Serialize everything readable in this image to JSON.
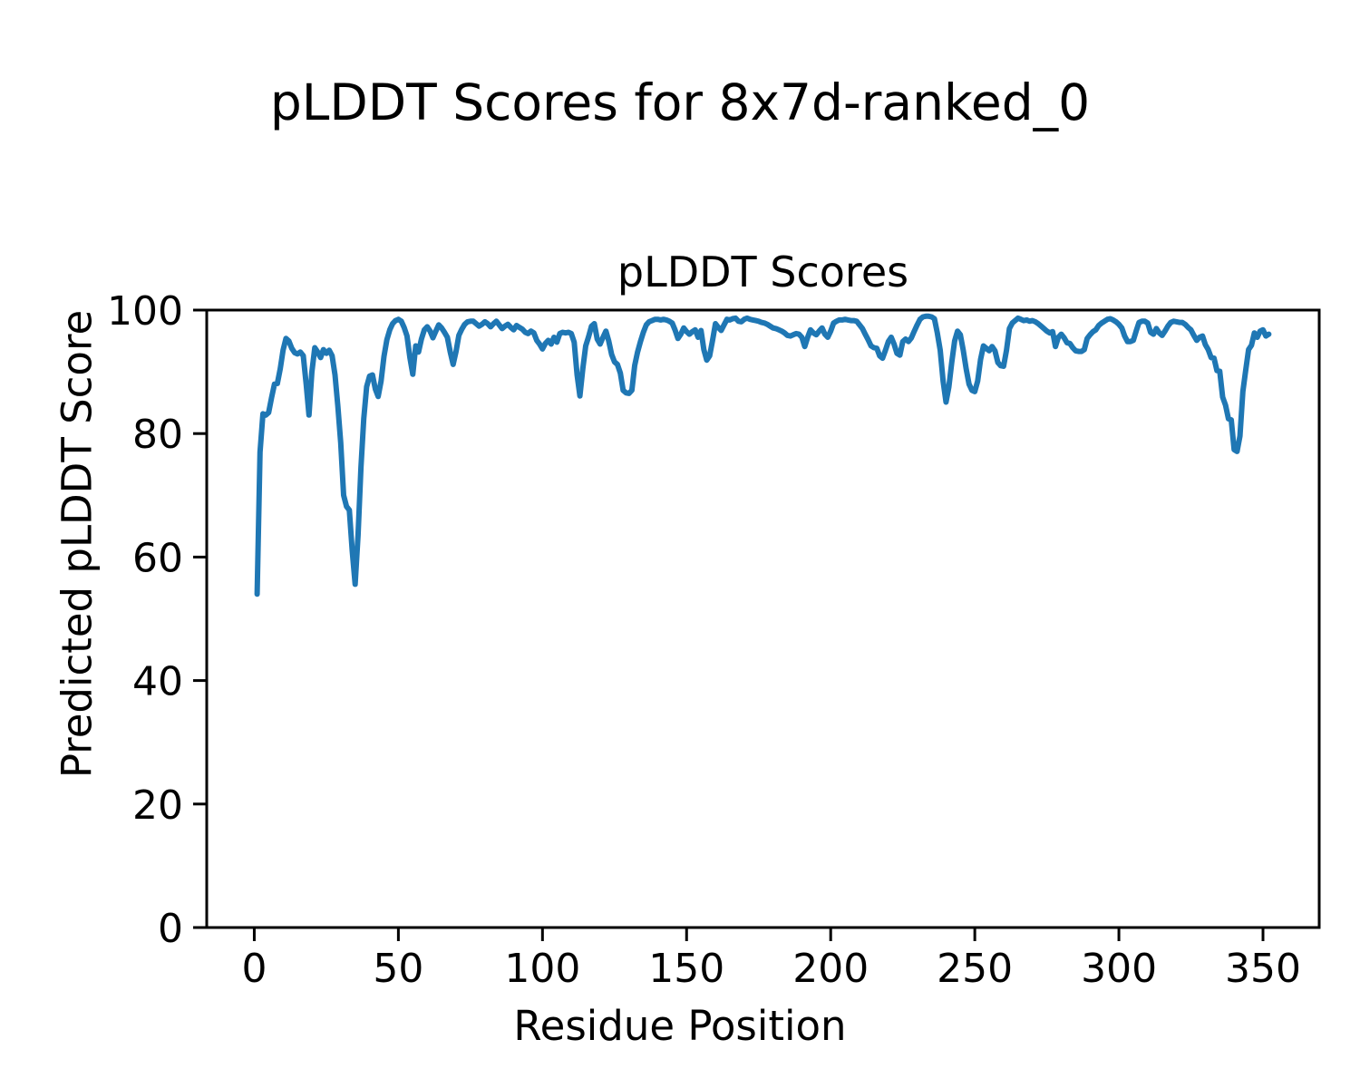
{
  "figure": {
    "suptitle": "pLDDT Scores for 8x7d-ranked_0",
    "background_color": "#ffffff",
    "text_color": "#000000",
    "spine_color": "#000000"
  },
  "chart_data": {
    "type": "line",
    "title": "pLDDT Scores",
    "xlabel": "Residue Position",
    "ylabel": "Predicted pLDDT Score",
    "xlim": [
      -16.5,
      369.5
    ],
    "ylim": [
      0,
      100
    ],
    "xticks": [
      0,
      50,
      100,
      150,
      200,
      250,
      300,
      350
    ],
    "yticks": [
      0,
      20,
      40,
      60,
      80,
      100
    ],
    "grid": false,
    "legend_position": "none",
    "series": [
      {
        "name": "pLDDT",
        "color": "#1f77b4",
        "line_width": 6,
        "x_start": 1,
        "x_step": 1,
        "y": [
          54.0,
          77.0,
          83.2,
          83.0,
          83.4,
          85.8,
          88.0,
          88.1,
          90.5,
          93.5,
          95.4,
          95.0,
          93.8,
          93.1,
          92.9,
          93.2,
          92.6,
          88.0,
          83.0,
          90.0,
          93.9,
          93.2,
          92.3,
          93.6,
          93.0,
          93.5,
          92.6,
          89.5,
          84.5,
          78.5,
          70.0,
          68.2,
          67.6,
          61.0,
          55.6,
          63.5,
          74.5,
          82.4,
          87.6,
          89.3,
          89.5,
          87.2,
          86.0,
          88.5,
          92.5,
          95.2,
          96.8,
          97.8,
          98.3,
          98.5,
          98.2,
          97.2,
          95.8,
          92.3,
          89.6,
          94.2,
          93.2,
          95.3,
          96.8,
          97.3,
          96.6,
          95.5,
          96.6,
          97.6,
          97.1,
          96.4,
          95.6,
          93.2,
          91.2,
          93.3,
          95.9,
          96.9,
          97.7,
          98.1,
          98.2,
          98.2,
          97.8,
          97.4,
          97.7,
          98.1,
          97.8,
          97.3,
          97.8,
          98.2,
          97.6,
          97.0,
          97.4,
          97.7,
          97.2,
          96.8,
          97.5,
          97.2,
          96.9,
          96.4,
          96.2,
          96.6,
          96.3,
          95.1,
          94.5,
          93.7,
          94.6,
          95.1,
          94.5,
          95.6,
          94.8,
          96.2,
          96.4,
          96.3,
          96.4,
          96.2,
          94.8,
          89.5,
          86.1,
          90.5,
          94.2,
          95.7,
          97.4,
          97.8,
          95.3,
          94.5,
          95.6,
          96.6,
          95.0,
          92.8,
          91.6,
          91.2,
          89.8,
          87.0,
          86.6,
          86.5,
          87.0,
          91.0,
          93.2,
          94.9,
          96.4,
          97.6,
          98.1,
          98.3,
          98.5,
          98.5,
          98.4,
          98.5,
          98.4,
          98.2,
          97.9,
          96.8,
          95.4,
          96.1,
          97.1,
          96.5,
          96.1,
          96.5,
          96.8,
          95.6,
          96.7,
          93.6,
          91.9,
          92.6,
          95.1,
          97.8,
          97.2,
          96.7,
          97.6,
          98.5,
          98.4,
          98.6,
          98.7,
          98.2,
          98.1,
          98.5,
          98.7,
          98.5,
          98.4,
          98.3,
          98.2,
          98.0,
          97.9,
          97.7,
          97.4,
          97.1,
          97.0,
          96.8,
          96.6,
          96.3,
          95.9,
          95.8,
          96.0,
          96.2,
          96.1,
          95.6,
          94.1,
          95.6,
          96.8,
          96.3,
          96.0,
          96.6,
          97.1,
          96.1,
          95.6,
          96.6,
          97.9,
          98.2,
          98.4,
          98.4,
          98.5,
          98.4,
          98.3,
          98.3,
          98.2,
          97.6,
          97.0,
          96.1,
          95.2,
          94.2,
          93.9,
          93.8,
          92.6,
          92.2,
          93.5,
          94.9,
          95.6,
          94.5,
          93.0,
          92.7,
          94.9,
          95.3,
          94.9,
          95.5,
          96.6,
          97.6,
          98.5,
          98.9,
          99.0,
          99.0,
          98.9,
          98.6,
          96.3,
          93.5,
          88.5,
          85.1,
          87.5,
          91.5,
          95.0,
          96.6,
          96.0,
          93.5,
          90.5,
          88.0,
          87.0,
          86.8,
          88.5,
          92.0,
          94.2,
          93.8,
          93.4,
          94.1,
          93.4,
          91.5,
          91.0,
          90.9,
          93.5,
          97.0,
          97.9,
          98.3,
          98.7,
          98.5,
          98.3,
          98.4,
          98.2,
          98.3,
          98.1,
          97.8,
          97.4,
          97.0,
          96.6,
          96.3,
          96.5,
          94.1,
          95.6,
          96.1,
          95.5,
          94.7,
          94.6,
          93.9,
          93.4,
          93.3,
          93.3,
          93.6,
          95.4,
          96.0,
          96.5,
          96.8,
          97.5,
          97.9,
          98.2,
          98.5,
          98.6,
          98.4,
          98.1,
          97.7,
          97.1,
          95.8,
          94.9,
          94.9,
          95.1,
          96.6,
          98.0,
          98.2,
          98.2,
          97.9,
          96.4,
          96.1,
          97.0,
          96.3,
          95.9,
          96.6,
          97.4,
          98.0,
          98.2,
          98.1,
          98.0,
          98.0,
          97.7,
          97.2,
          96.8,
          95.9,
          95.1,
          95.6,
          95.8,
          94.4,
          93.6,
          92.3,
          92.2,
          90.2,
          90.1,
          85.9,
          84.6,
          82.4,
          82.2,
          77.4,
          77.1,
          79.6,
          86.8,
          90.2,
          93.6,
          94.3,
          96.3,
          95.6,
          96.6,
          96.8,
          95.8,
          96.1
        ]
      }
    ]
  }
}
